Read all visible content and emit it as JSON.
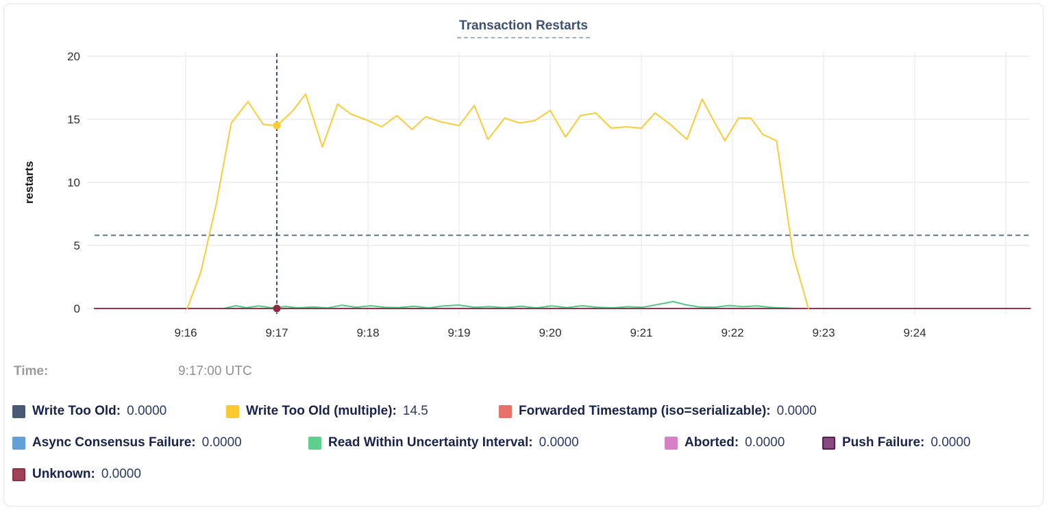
{
  "card": {
    "title": "Transaction Restarts"
  },
  "tooltip": {
    "time_label": "Time:",
    "time_value": "9:17:00 UTC"
  },
  "y_axis": {
    "label": "restarts",
    "ticks": [
      0,
      5,
      10,
      15,
      20
    ]
  },
  "x_axis": {
    "tick_labels": [
      "9:16",
      "9:17",
      "9:18",
      "9:19",
      "9:20",
      "9:21",
      "9:22",
      "9:23",
      "9:24",
      ""
    ]
  },
  "legend": {
    "rows": [
      {
        "y": 589,
        "items": [
          {
            "x": 18,
            "label": "Write Too Old:",
            "value": "0.0000",
            "color": "#4a5a75"
          },
          {
            "x": 330,
            "label": "Write Too Old (multiple):",
            "value": "14.5",
            "color": "#fbca33"
          },
          {
            "x": 728,
            "label": "Forwarded Timestamp (iso=serializable):",
            "value": "0.0000",
            "color": "#e8716a"
          }
        ]
      },
      {
        "y": 635,
        "items": [
          {
            "x": 18,
            "label": "Async Consensus Failure:",
            "value": "0.0000",
            "color": "#61a1d8"
          },
          {
            "x": 450,
            "label": "Read Within Uncertainty Interval:",
            "value": "0.0000",
            "color": "#5cd18b"
          },
          {
            "x": 970,
            "label": "Aborted:",
            "value": "0.0000",
            "color": "#d780c8"
          },
          {
            "x": 1200,
            "label": "Push Failure:",
            "value": "0.0000",
            "color": "#864a80",
            "border": "#552051"
          }
        ]
      },
      {
        "y": 681,
        "items": [
          {
            "x": 18,
            "label": "Unknown:",
            "value": "0.0000",
            "color": "#a0435a",
            "border": "#8e2f44"
          }
        ]
      }
    ]
  },
  "chart_data": {
    "type": "line",
    "title": "Transaction Restarts",
    "xlabel": "",
    "ylabel": "restarts",
    "ylim": [
      0,
      20
    ],
    "x_unit": "seconds since 9:15:00 UTC",
    "x_window_minutes": [
      "9:15",
      "9:25"
    ],
    "grid": true,
    "avg_line": 5.8,
    "hover": {
      "t": 120,
      "time": "9:17:00 UTC",
      "points": [
        {
          "series": "Write Too Old (multiple)",
          "value": 14.5,
          "color": "#fcca33"
        },
        {
          "series": "Unknown",
          "value": 0,
          "color": "#8c2b40"
        }
      ]
    },
    "series": [
      {
        "name": "Write Too Old",
        "color": "#4a5a75",
        "points": [
          [
            0,
            0
          ],
          [
            616,
            0
          ]
        ]
      },
      {
        "name": "Forwarded Timestamp (iso=serializable)",
        "color": "#e8716a",
        "points": [
          [
            0,
            0
          ],
          [
            616,
            0
          ]
        ]
      },
      {
        "name": "Async Consensus Failure",
        "color": "#61a1d8",
        "points": [
          [
            0,
            0
          ],
          [
            616,
            0
          ]
        ]
      },
      {
        "name": "Aborted",
        "color": "#d780c8",
        "points": [
          [
            0,
            0
          ],
          [
            616,
            0
          ]
        ]
      },
      {
        "name": "Push Failure",
        "color": "#6d2f67",
        "points": [
          [
            0,
            0
          ],
          [
            616,
            0
          ]
        ]
      },
      {
        "name": "Read Within Uncertainty Interval",
        "color": "#4fc983",
        "points": [
          [
            85,
            0
          ],
          [
            93,
            0.22
          ],
          [
            100,
            0.06
          ],
          [
            108,
            0.2
          ],
          [
            116,
            0.07
          ],
          [
            126,
            0.16
          ],
          [
            134,
            0.05
          ],
          [
            144,
            0.12
          ],
          [
            153,
            0.04
          ],
          [
            163,
            0.26
          ],
          [
            172,
            0.1
          ],
          [
            182,
            0.22
          ],
          [
            191,
            0.1
          ],
          [
            200,
            0.07
          ],
          [
            210,
            0.18
          ],
          [
            220,
            0.05
          ],
          [
            230,
            0.2
          ],
          [
            240,
            0.27
          ],
          [
            250,
            0.1
          ],
          [
            260,
            0.15
          ],
          [
            270,
            0.07
          ],
          [
            281,
            0.18
          ],
          [
            291,
            0.05
          ],
          [
            301,
            0.2
          ],
          [
            311,
            0.07
          ],
          [
            321,
            0.22
          ],
          [
            331,
            0.1
          ],
          [
            341,
            0.05
          ],
          [
            351,
            0.14
          ],
          [
            361,
            0.1
          ],
          [
            371,
            0.32
          ],
          [
            381,
            0.55
          ],
          [
            389,
            0.3
          ],
          [
            398,
            0.12
          ],
          [
            408,
            0.1
          ],
          [
            418,
            0.24
          ],
          [
            427,
            0.14
          ],
          [
            436,
            0.2
          ],
          [
            446,
            0.08
          ],
          [
            455,
            0.03
          ],
          [
            462,
            0
          ]
        ]
      },
      {
        "name": "Unknown",
        "color": "#9e3048",
        "points": [
          [
            0,
            0
          ],
          [
            616,
            0
          ]
        ]
      },
      {
        "name": "Write Too Old (multiple)",
        "color": "#fcca33",
        "points": [
          [
            61,
            0
          ],
          [
            70,
            2.9
          ],
          [
            80,
            8.2
          ],
          [
            90,
            14.7
          ],
          [
            101,
            16.4
          ],
          [
            111,
            14.6
          ],
          [
            120,
            14.5
          ],
          [
            130,
            15.6
          ],
          [
            139,
            17.0
          ],
          [
            150,
            12.8
          ],
          [
            160,
            16.2
          ],
          [
            169,
            15.4
          ],
          [
            180,
            14.9
          ],
          [
            189,
            14.4
          ],
          [
            199,
            15.3
          ],
          [
            209,
            14.2
          ],
          [
            218,
            15.2
          ],
          [
            228,
            14.8
          ],
          [
            240,
            14.5
          ],
          [
            250,
            16.1
          ],
          [
            259,
            13.4
          ],
          [
            270,
            15.1
          ],
          [
            280,
            14.7
          ],
          [
            290,
            14.9
          ],
          [
            300,
            15.7
          ],
          [
            310,
            13.6
          ],
          [
            320,
            15.3
          ],
          [
            330,
            15.5
          ],
          [
            340,
            14.3
          ],
          [
            350,
            14.4
          ],
          [
            360,
            14.3
          ],
          [
            369,
            15.5
          ],
          [
            379,
            14.6
          ],
          [
            390,
            13.4
          ],
          [
            400,
            16.6
          ],
          [
            408,
            14.8
          ],
          [
            415,
            13.3
          ],
          [
            424,
            15.1
          ],
          [
            432,
            15.1
          ],
          [
            440,
            13.8
          ],
          [
            449,
            13.3
          ],
          [
            460,
            4.2
          ],
          [
            470,
            0
          ]
        ]
      }
    ]
  }
}
